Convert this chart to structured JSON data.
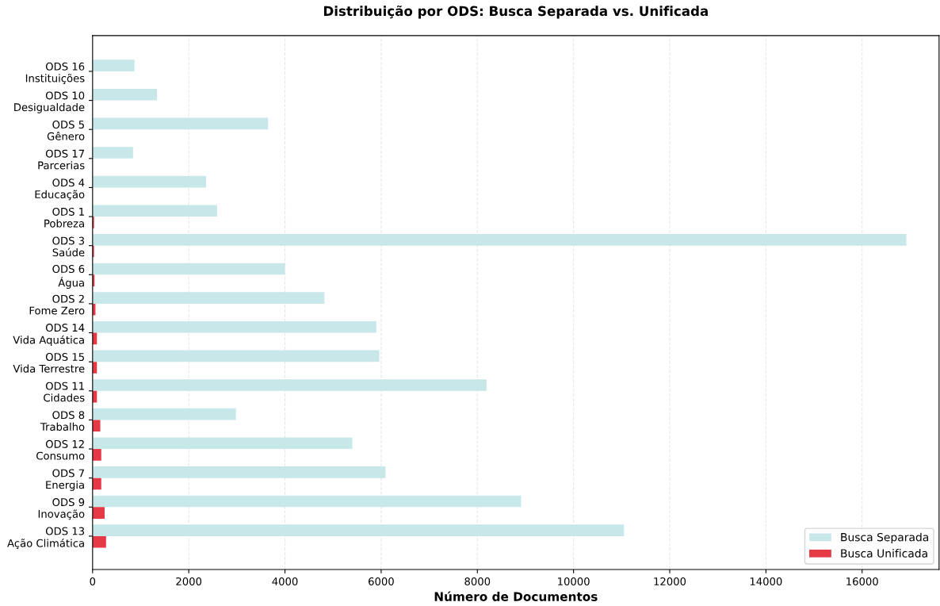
{
  "chart_data": {
    "type": "bar",
    "orientation": "horizontal",
    "title": "Distribuição por ODS: Busca Separada vs. Unificada",
    "xlabel": "Número de Documentos",
    "categories": [
      "ODS 16\nInstituições",
      "ODS 10\nDesigualdade",
      "ODS 5\nGênero",
      "ODS 17\nParcerias",
      "ODS 4\nEducação",
      "ODS 1\nPobreza",
      "ODS 3\nSaúde",
      "ODS 6\nÁgua",
      "ODS 2\nFome Zero",
      "ODS 14\nVida Aquática",
      "ODS 15\nVida Terrestre",
      "ODS 11\nCidades",
      "ODS 8\nTrabalho",
      "ODS 12\nConsumo",
      "ODS 7\nEnergia",
      "ODS 9\nInovação",
      "ODS 13\nAção Climática"
    ],
    "series": [
      {
        "name": "Busca Separada",
        "color": "#c8e7e8",
        "values": [
          870,
          1340,
          3650,
          840,
          2360,
          2590,
          16920,
          4000,
          4820,
          5900,
          5960,
          8190,
          2980,
          5400,
          6090,
          8910,
          11050
        ]
      },
      {
        "name": "Busca Unificada",
        "color": "#e63946",
        "values": [
          0,
          0,
          0,
          0,
          0,
          30,
          30,
          40,
          60,
          90,
          90,
          90,
          160,
          180,
          180,
          250,
          280
        ]
      }
    ],
    "xlim": [
      0,
      17600
    ],
    "xticks": [
      0,
      2000,
      4000,
      6000,
      8000,
      10000,
      12000,
      14000,
      16000
    ],
    "grid": "x",
    "legend": "bottom right"
  }
}
